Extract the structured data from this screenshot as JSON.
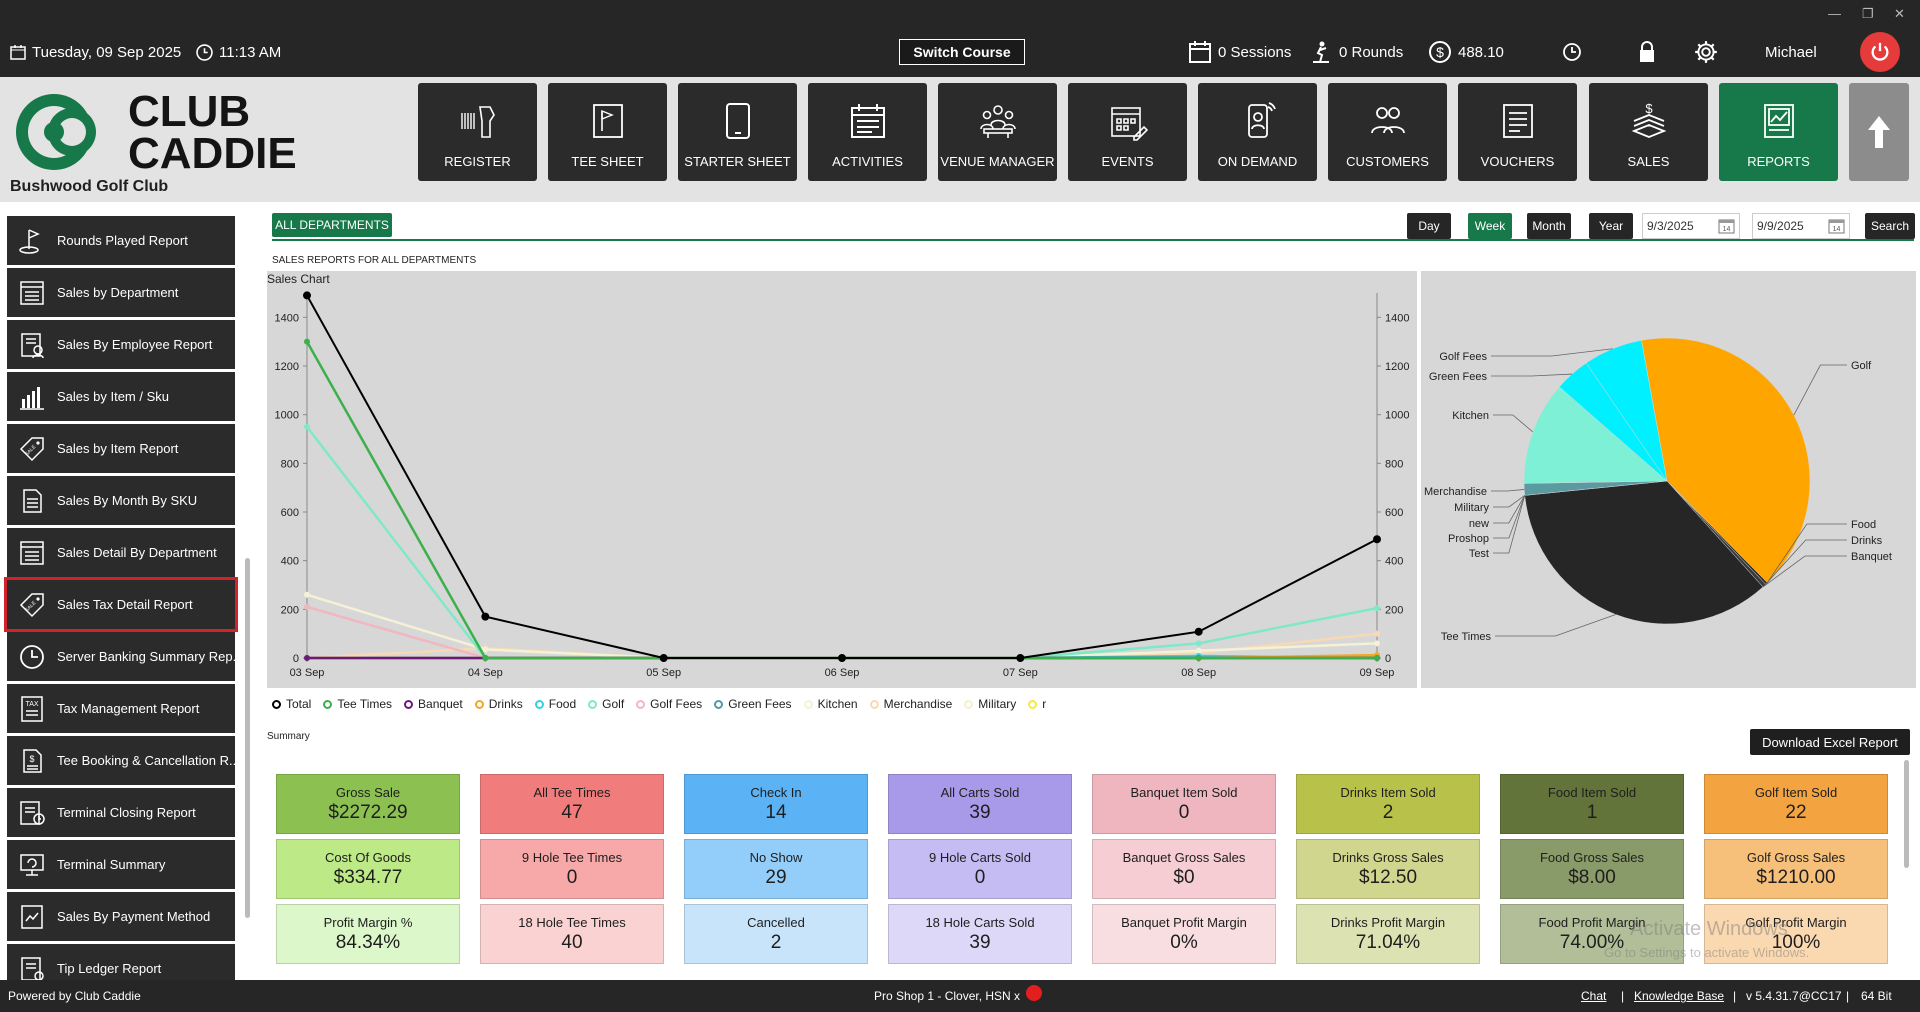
{
  "topbar": {
    "date": "Tuesday,  09 Sep 2025",
    "time": "11:13 AM",
    "switch_course": "Switch Course",
    "sessions": "0 Sessions",
    "rounds": "0 Rounds",
    "balance": "488.10",
    "user": "Michael"
  },
  "brand": {
    "logo_line1": "CLUB",
    "logo_line2": "CADDIE",
    "club_name": "Bushwood Golf Club"
  },
  "nav": [
    {
      "label": "REGISTER",
      "icon": "barcode-scanner-icon"
    },
    {
      "label": "TEE SHEET",
      "icon": "tee-sheet-icon"
    },
    {
      "label": "STARTER SHEET",
      "icon": "tablet-icon"
    },
    {
      "label": "ACTIVITIES",
      "icon": "calendar-icon"
    },
    {
      "label": "VENUE MANAGER",
      "icon": "venue-icon"
    },
    {
      "label": "EVENTS",
      "icon": "events-icon"
    },
    {
      "label": "ON DEMAND",
      "icon": "mobile-icon"
    },
    {
      "label": "CUSTOMERS",
      "icon": "customers-icon"
    },
    {
      "label": "VOUCHERS",
      "icon": "voucher-icon"
    },
    {
      "label": "SALES",
      "icon": "sales-icon"
    },
    {
      "label": "REPORTS",
      "icon": "reports-icon"
    }
  ],
  "sidebar": {
    "items": [
      {
        "label": "Rounds Played Report",
        "icon": "golf-flag-icon"
      },
      {
        "label": "Sales by Department",
        "icon": "list-icon"
      },
      {
        "label": "Sales By Employee Report",
        "icon": "employee-report-icon"
      },
      {
        "label": "Sales by Item / Sku",
        "icon": "bar-chart-icon"
      },
      {
        "label": "Sales by Item Report",
        "icon": "sale-tag-icon"
      },
      {
        "label": "Sales By Month By SKU",
        "icon": "document-icon"
      },
      {
        "label": "Sales Detail By Department",
        "icon": "list-icon"
      },
      {
        "label": "Sales Tax Detail Report",
        "icon": "sale-tag-icon"
      },
      {
        "label": "Server Banking Summary Rep...",
        "icon": "clock-icon"
      },
      {
        "label": "Tax Management Report",
        "icon": "tax-document-icon"
      },
      {
        "label": "Tee Booking & Cancellation R...",
        "icon": "document-dollar-icon"
      },
      {
        "label": "Terminal Closing Report",
        "icon": "terminal-report-icon"
      },
      {
        "label": "Terminal Summary",
        "icon": "monitor-icon"
      },
      {
        "label": "Sales By Payment Method",
        "icon": "chart-document-icon"
      },
      {
        "label": "Tip Ledger Report",
        "icon": "ledger-icon"
      }
    ]
  },
  "filters": {
    "department": "ALL DEPARTMENTS",
    "periods": [
      "Day",
      "Week",
      "Month",
      "Year"
    ],
    "active_period": "Week",
    "start_date": "9/3/2025",
    "end_date": "9/9/2025",
    "search": "Search"
  },
  "report_title": "SALES REPORTS FOR ALL DEPARTMENTS",
  "chart_data": [
    {
      "type": "line",
      "title": "Sales Chart",
      "x": [
        "03 Sep",
        "04 Sep",
        "05 Sep",
        "06 Sep",
        "07 Sep",
        "08 Sep",
        "09 Sep"
      ],
      "ylim": [
        0,
        1500
      ],
      "yticks": [
        0,
        200,
        400,
        600,
        800,
        1000,
        1200,
        1400
      ],
      "grid": false,
      "legend_position": "bottom",
      "series": [
        {
          "name": "Total",
          "color": "#000000",
          "values": [
            1490,
            170,
            0,
            0,
            0,
            108,
            488
          ]
        },
        {
          "name": "Tee Times",
          "color": "#3cb04b",
          "values": [
            1300,
            0,
            0,
            0,
            0,
            0,
            0
          ]
        },
        {
          "name": "Banquet",
          "color": "#6a1b7a",
          "values": [
            0,
            0,
            0,
            0,
            0,
            0,
            0
          ]
        },
        {
          "name": "Drinks",
          "color": "#f5a623",
          "values": [
            0,
            0,
            0,
            0,
            0,
            0,
            12
          ]
        },
        {
          "name": "Food",
          "color": "#2ed3e6",
          "values": [
            0,
            0,
            0,
            0,
            0,
            8,
            0
          ]
        },
        {
          "name": "Golf",
          "color": "#7fe8c8",
          "values": [
            950,
            0,
            0,
            0,
            0,
            60,
            205
          ]
        },
        {
          "name": "Golf Fees",
          "color": "#f2b6c0",
          "values": [
            210,
            0,
            0,
            0,
            0,
            0,
            0
          ]
        },
        {
          "name": "Green Fees",
          "color": "#4f9aa3",
          "values": [
            0,
            0,
            0,
            0,
            0,
            0,
            0
          ]
        },
        {
          "name": "Kitchen",
          "color": "#f3f1d6",
          "values": [
            260,
            35,
            0,
            0,
            0,
            30,
            60
          ]
        },
        {
          "name": "Merchandise",
          "color": "#f8d9b4",
          "values": [
            0,
            40,
            0,
            0,
            0,
            20,
            100
          ]
        },
        {
          "name": "Military",
          "color": "#f4f0c8",
          "values": [
            0,
            0,
            0,
            0,
            0,
            0,
            0
          ]
        },
        {
          "name": "r",
          "color": "#f5ea3a",
          "values": [
            0,
            0,
            0,
            0,
            0,
            0,
            0
          ]
        }
      ]
    },
    {
      "type": "pie",
      "labels": [
        "Golf",
        "Food",
        "Drinks",
        "Banquet",
        "Tee Times",
        "Test",
        "Proshop",
        "new",
        "Military",
        "Merchandise",
        "Kitchen",
        "Green Fees",
        "Golf Fees"
      ],
      "values": [
        1210,
        8,
        12.5,
        0,
        1050,
        0,
        0,
        0,
        0,
        40,
        350,
        120,
        200
      ],
      "colors": [
        "#ffa500",
        "#2f2f2f",
        "#3a3a3a",
        "#444444",
        "#262626",
        "#f3d9b8",
        "#efe1c0",
        "#f6e6c8",
        "#f9ecd0",
        "#5a9aa0",
        "#7ef0d6",
        "#00f0ff",
        "#00f0ff"
      ]
    }
  ],
  "legend": {
    "items": [
      {
        "label": "Total",
        "color": "#000000"
      },
      {
        "label": "Tee Times",
        "color": "#3cb04b"
      },
      {
        "label": "Banquet",
        "color": "#6a1b7a"
      },
      {
        "label": "Drinks",
        "color": "#f5a623"
      },
      {
        "label": "Food",
        "color": "#2ed3e6"
      },
      {
        "label": "Golf",
        "color": "#7fe8c8"
      },
      {
        "label": "Golf Fees",
        "color": "#f2b6c0"
      },
      {
        "label": "Green Fees",
        "color": "#4f9aa3"
      },
      {
        "label": "Kitchen",
        "color": "#f3f1d6"
      },
      {
        "label": "Merchandise",
        "color": "#f8d9b4"
      },
      {
        "label": "Military",
        "color": "#f4f0c8"
      },
      {
        "label": "r",
        "color": "#f5ea3a"
      }
    ]
  },
  "summary": {
    "label": "Summary",
    "download": "Download Excel Report",
    "columns": [
      {
        "color": "#8cc152",
        "light": "#bde987",
        "lighter": "#dcf7c9",
        "cards": [
          {
            "label": "Gross Sale",
            "value": "$2272.29"
          },
          {
            "label": "Cost Of Goods",
            "value": "$334.77"
          },
          {
            "label": "Profit Margin %",
            "value": "84.34%"
          }
        ]
      },
      {
        "color": "#f07c7c",
        "light": "#f7a8a8",
        "lighter": "#fad2d2",
        "cards": [
          {
            "label": "All Tee Times",
            "value": "47"
          },
          {
            "label": "9 Hole Tee Times",
            "value": "0"
          },
          {
            "label": "18 Hole Tee Times",
            "value": "40"
          }
        ]
      },
      {
        "color": "#5bb3f5",
        "light": "#93cdf9",
        "lighter": "#c8e4fb",
        "cards": [
          {
            "label": "Check In",
            "value": "14"
          },
          {
            "label": "No Show",
            "value": "29"
          },
          {
            "label": "Cancelled",
            "value": "2"
          }
        ]
      },
      {
        "color": "#a89ae8",
        "light": "#c5bcf3",
        "lighter": "#ddd7f8",
        "cards": [
          {
            "label": "All Carts Sold",
            "value": "39"
          },
          {
            "label": "9 Hole Carts Sold",
            "value": "0"
          },
          {
            "label": "18 Hole Carts Sold",
            "value": "39"
          }
        ]
      },
      {
        "color": "#f0b6bf",
        "light": "#f5cdd3",
        "lighter": "#f8dde1",
        "cards": [
          {
            "label": "Banquet Item Sold",
            "value": "0"
          },
          {
            "label": "Banquet Gross Sales",
            "value": "$0"
          },
          {
            "label": "Banquet Profit Margin",
            "value": "0%"
          }
        ]
      },
      {
        "color": "#b8c24a",
        "light": "#d0d68e",
        "lighter": "#dde2b2",
        "cards": [
          {
            "label": "Drinks Item Sold",
            "value": "2"
          },
          {
            "label": "Drinks Gross Sales",
            "value": "$12.50"
          },
          {
            "label": "Drinks Profit Margin",
            "value": "71.04%"
          }
        ]
      },
      {
        "color": "#63743a",
        "light": "#8a9b6a",
        "lighter": "#b2be98",
        "cards": [
          {
            "label": "Food Item Sold",
            "value": "1"
          },
          {
            "label": "Food Gross Sales",
            "value": "$8.00"
          },
          {
            "label": "Food Profit Margin",
            "value": "74.00%"
          }
        ]
      },
      {
        "color": "#f3a441",
        "light": "#f7c07a",
        "lighter": "#fad8b0",
        "cards": [
          {
            "label": "Golf Item Sold",
            "value": "22"
          },
          {
            "label": "Golf Gross Sales",
            "value": "$1210.00"
          },
          {
            "label": "Golf Profit Margin",
            "value": "100%"
          }
        ]
      }
    ]
  },
  "watermark": {
    "line1": "Activate Windows",
    "line2": "Go to Settings to activate Windows."
  },
  "footer": {
    "powered": "Powered by Club Caddie",
    "terminal": "Pro Shop 1 - Clover, HSN x",
    "chat": "Chat",
    "kb": "Knowledge Base",
    "version": "v 5.4.31.7@CC17",
    "bits": "64 Bit",
    "sep": "|"
  }
}
